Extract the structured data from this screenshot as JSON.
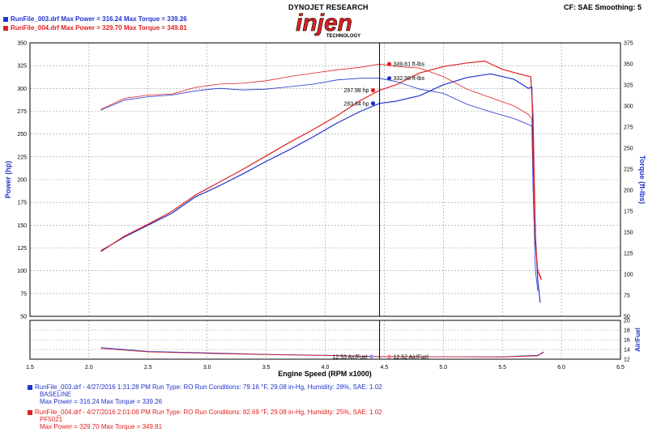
{
  "header": {
    "run1": "RunFile_003.drf Max Power = 316.24    Max Torque = 339.26",
    "run2": "RunFile_004.drf Max Power = 329.70    Max Torque = 349.81",
    "brand_top": "DYNOJET RESEARCH",
    "logo_word": "injen",
    "logo_sub": "TECHNOLOGY",
    "cf_smoothing": "CF: SAE  Smoothing: 5"
  },
  "colors": {
    "run1": "#2233cc",
    "run2": "#e02020",
    "grid": "#888888"
  },
  "chart_data": {
    "type": "line",
    "xlabel": "Engine Speed (RPM x1000)",
    "xlim": [
      1.5,
      6.5
    ],
    "x_ticks": [
      "1.5",
      "2.0",
      "2.5",
      "3.0",
      "3.5",
      "4.0",
      "4.5",
      "5.0",
      "5.5",
      "6.0",
      "6.5"
    ],
    "main": {
      "ylabel_left": "Power (hp)",
      "ylabel_right": "Torque (ft-lbs)",
      "ylim_left": [
        50,
        350
      ],
      "ylim_right": [
        50,
        375
      ],
      "left_ticks": [
        "50",
        "75",
        "100",
        "125",
        "150",
        "175",
        "200",
        "225",
        "250",
        "275",
        "300",
        "325",
        "350"
      ],
      "right_ticks": [
        "50",
        "75",
        "100",
        "125",
        "150",
        "175",
        "200",
        "225",
        "250",
        "275",
        "300",
        "325",
        "350",
        "375"
      ],
      "cursor_x": 4.46,
      "series": [
        {
          "name": "RunFile_003 Power",
          "axis": "left",
          "run": "run1",
          "width": 1.2,
          "x": [
            2.1,
            2.3,
            2.5,
            2.7,
            2.9,
            3.1,
            3.3,
            3.5,
            3.7,
            3.9,
            4.1,
            4.3,
            4.46,
            4.6,
            4.8,
            5.0,
            5.2,
            5.4,
            5.6,
            5.72,
            5.75,
            5.76,
            5.78,
            5.8,
            5.82
          ],
          "y": [
            122,
            137,
            150,
            163,
            181,
            193,
            206,
            220,
            233,
            247,
            262,
            275,
            283.6,
            286,
            292,
            304,
            312,
            316,
            310,
            300,
            302,
            240,
            140,
            90,
            65
          ]
        },
        {
          "name": "RunFile_004 Power",
          "axis": "left",
          "run": "run2",
          "width": 1.2,
          "x": [
            2.1,
            2.3,
            2.5,
            2.7,
            2.9,
            3.1,
            3.3,
            3.5,
            3.7,
            3.9,
            4.1,
            4.3,
            4.46,
            4.6,
            4.8,
            5.0,
            5.2,
            5.35,
            5.5,
            5.7,
            5.74,
            5.76,
            5.78,
            5.8,
            5.83
          ],
          "y": [
            121,
            138,
            151,
            165,
            183,
            197,
            211,
            226,
            241,
            255,
            270,
            287,
            298,
            304,
            317,
            324,
            328,
            330,
            321,
            314,
            313,
            270,
            130,
            100,
            90
          ]
        },
        {
          "name": "RunFile_003 Torque",
          "axis": "right",
          "run": "run1",
          "width": 0.8,
          "x": [
            2.1,
            2.3,
            2.5,
            2.7,
            2.9,
            3.1,
            3.3,
            3.5,
            3.7,
            3.9,
            4.1,
            4.3,
            4.46,
            4.6,
            4.8,
            5.0,
            5.2,
            5.4,
            5.6,
            5.72,
            5.75,
            5.76,
            5.78,
            5.8
          ],
          "y": [
            295,
            307,
            311,
            313,
            318,
            321,
            319,
            320,
            323,
            326,
            331,
            333,
            333,
            329,
            320,
            315,
            302,
            293,
            285,
            278,
            276,
            200,
            105,
            80
          ]
        },
        {
          "name": "RunFile_004 Torque",
          "axis": "right",
          "run": "run2",
          "width": 0.8,
          "x": [
            2.1,
            2.3,
            2.5,
            2.7,
            2.9,
            3.1,
            3.3,
            3.5,
            3.7,
            3.9,
            4.1,
            4.3,
            4.46,
            4.6,
            4.8,
            5.0,
            5.2,
            5.4,
            5.6,
            5.72,
            5.75,
            5.76,
            5.78,
            5.8,
            5.83
          ],
          "y": [
            296,
            309,
            313,
            314,
            322,
            326,
            327,
            330,
            335,
            339,
            343,
            346,
            349.8,
            347,
            345,
            335,
            320,
            310,
            300,
            290,
            285,
            230,
            140,
            105,
            95
          ]
        }
      ],
      "annotations": [
        {
          "text": "349.81 ft-lbs",
          "x": 4.46,
          "y": 349.81,
          "axis": "right",
          "run": "run2",
          "side": "right"
        },
        {
          "text": "332.98 ft-lbs",
          "x": 4.46,
          "y": 332.98,
          "axis": "right",
          "run": "run1",
          "side": "right"
        },
        {
          "text": "297.98 hp",
          "x": 4.46,
          "y": 297.98,
          "axis": "left",
          "run": "run2",
          "side": "left"
        },
        {
          "text": "283.64 hp",
          "x": 4.46,
          "y": 283.64,
          "axis": "left",
          "run": "run1",
          "side": "left"
        }
      ]
    },
    "afr": {
      "ylabel": "Air/Fuel",
      "ylim": [
        12,
        20
      ],
      "ticks": [
        "12",
        "14",
        "16",
        "18",
        "20"
      ],
      "series": [
        {
          "name": "RunFile_003 Air/Fuel",
          "run": "run1",
          "x": [
            2.1,
            2.5,
            3.0,
            3.5,
            4.0,
            4.46,
            5.0,
            5.5,
            5.8,
            5.85
          ],
          "y": [
            14.4,
            13.6,
            13.3,
            13.0,
            12.8,
            12.53,
            12.5,
            12.5,
            12.8,
            13.5
          ]
        },
        {
          "name": "RunFile_004 Air/Fuel",
          "run": "run2",
          "x": [
            2.1,
            2.5,
            3.0,
            3.5,
            4.0,
            4.46,
            5.0,
            5.5,
            5.8,
            5.85
          ],
          "y": [
            14.2,
            13.5,
            13.2,
            12.95,
            12.75,
            12.52,
            12.5,
            12.45,
            12.7,
            13.4
          ]
        }
      ],
      "annotations": [
        {
          "text": "12.53 Air/Fuel",
          "x": 4.46,
          "y": 12.53,
          "run": "run1",
          "side": "left"
        },
        {
          "text": "12.52 Air/Fuel",
          "x": 4.46,
          "y": 12.52,
          "run": "run2",
          "side": "right"
        }
      ]
    }
  },
  "footer": {
    "run1_line1": "RunFile_003.drf - 4/27/2016 1:31:28 PM  Run Type: RO  Run Conditions: 79.16 °F, 29.08 in-Hg,  Humidity:  28%, SAE: 1.02",
    "run1_line2": "BASELINE",
    "run1_line3": "Max Power = 316.24  Max Torque = 339.26",
    "run2_line1": "RunFile_004.drf - 4/27/2016 2:01:08 PM  Run Type: RO  Run Conditions: 82.69 °F, 29.08 in-Hg,  Humidity:  25%, SAE: 1.02",
    "run2_line2": "PF5021",
    "run2_line3": "Max Power = 329.70  Max Torque = 349.81"
  }
}
